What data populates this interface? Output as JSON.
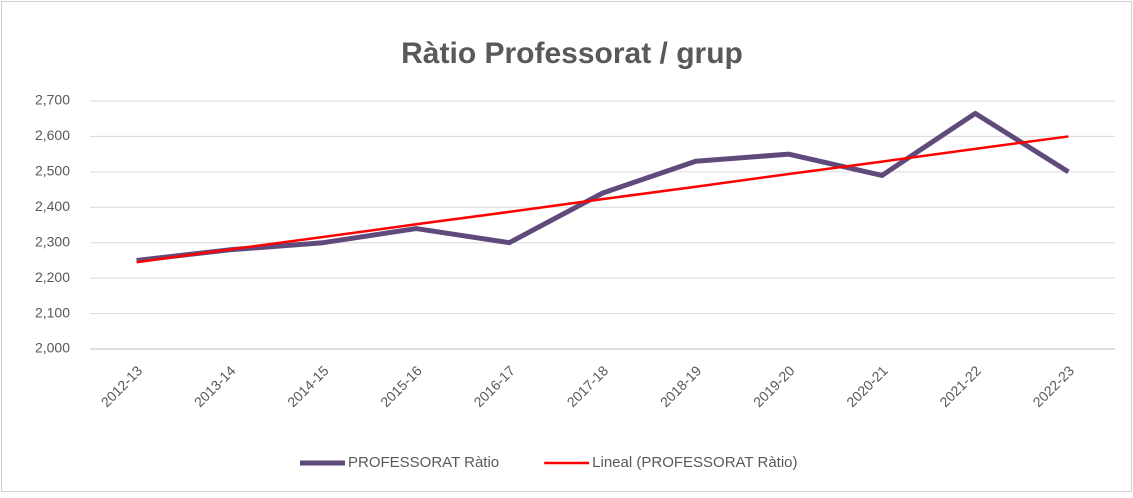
{
  "chart_data": {
    "type": "line",
    "title": "Ràtio Professorat / grup",
    "categories": [
      "2012-13",
      "2013-14",
      "2014-15",
      "2015-16",
      "2016-17",
      "2017-18",
      "2018-19",
      "2019-20",
      "2020-21",
      "2021-22",
      "2022-23"
    ],
    "series": [
      {
        "name": "PROFESSORAT Ràtio",
        "color": "#604a7b",
        "values": [
          2.25,
          2.28,
          2.3,
          2.34,
          2.3,
          2.44,
          2.53,
          2.55,
          2.49,
          2.665,
          2.5
        ]
      },
      {
        "name": "Lineal (PROFESSORAT Ràtio)",
        "color": "#ff0000",
        "values": [
          2.245,
          2.281,
          2.316,
          2.352,
          2.387,
          2.423,
          2.458,
          2.494,
          2.529,
          2.565,
          2.6
        ]
      }
    ],
    "ylim": [
      2.0,
      2.7
    ],
    "yticks": [
      {
        "value": 2.0,
        "label": "2,000"
      },
      {
        "value": 2.1,
        "label": "2,100"
      },
      {
        "value": 2.2,
        "label": "2,200"
      },
      {
        "value": 2.3,
        "label": "2,300"
      },
      {
        "value": 2.4,
        "label": "2,400"
      },
      {
        "value": 2.5,
        "label": "2,500"
      },
      {
        "value": 2.6,
        "label": "2,600"
      },
      {
        "value": 2.7,
        "label": "2,700"
      }
    ],
    "grid": true,
    "legend": "bottom"
  }
}
